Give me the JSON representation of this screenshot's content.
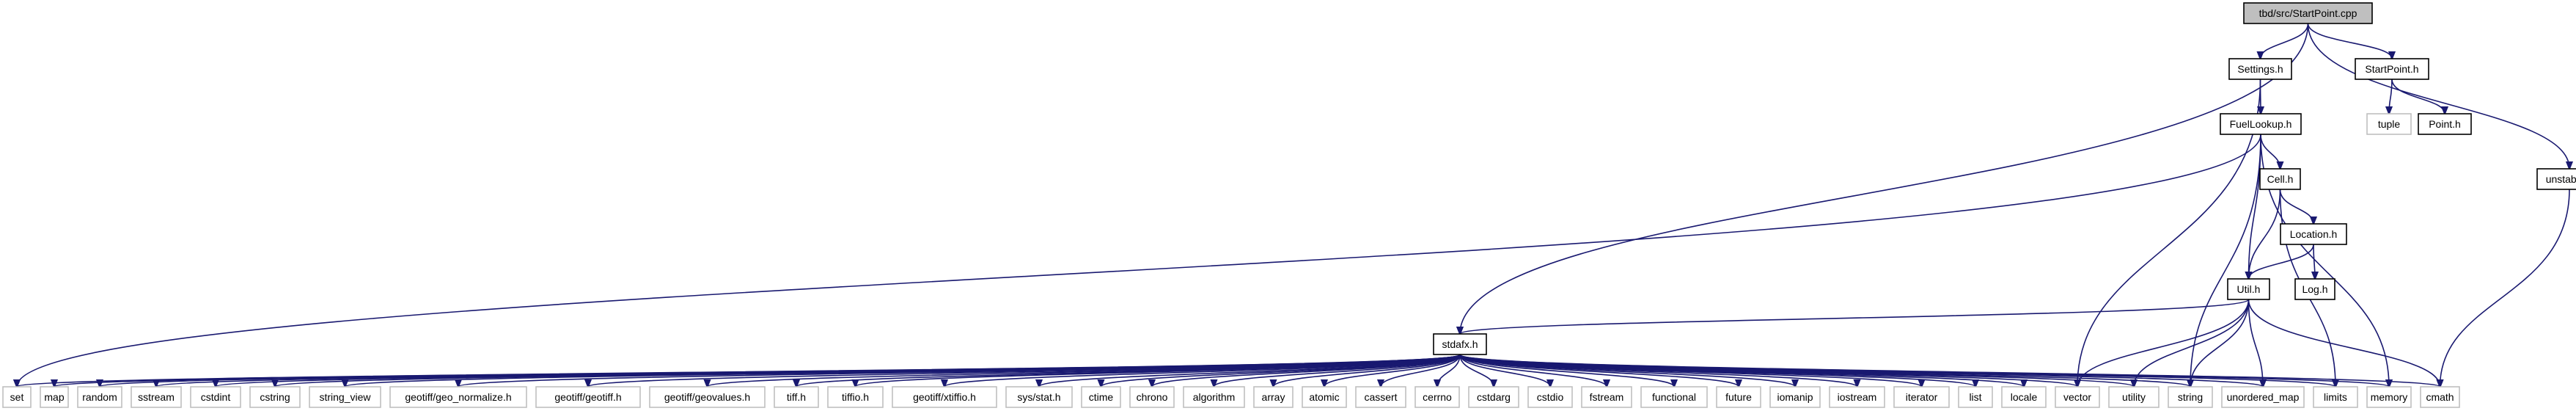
{
  "graph": {
    "root": "tbd/src/StartPoint.cpp",
    "nodes": [
      {
        "id": "root",
        "label": "tbd/src/StartPoint.cpp",
        "kind": "root",
        "doc": true
      },
      {
        "id": "settings",
        "label": "Settings.h",
        "kind": "doc",
        "doc": true
      },
      {
        "id": "startpoint_h",
        "label": "StartPoint.h",
        "kind": "doc",
        "doc": true
      },
      {
        "id": "tuple",
        "label": "tuple",
        "kind": "external",
        "doc": false
      },
      {
        "id": "point_h",
        "label": "Point.h",
        "kind": "doc",
        "doc": true
      },
      {
        "id": "fuellookup",
        "label": "FuelLookup.h",
        "kind": "doc",
        "doc": true
      },
      {
        "id": "unstable",
        "label": "unstable.h",
        "kind": "doc",
        "doc": true
      },
      {
        "id": "cell",
        "label": "Cell.h",
        "kind": "doc",
        "doc": true
      },
      {
        "id": "location",
        "label": "Location.h",
        "kind": "doc",
        "doc": true
      },
      {
        "id": "util",
        "label": "Util.h",
        "kind": "doc",
        "doc": true
      },
      {
        "id": "log",
        "label": "Log.h",
        "kind": "doc",
        "doc": true
      },
      {
        "id": "stdafx",
        "label": "stdafx.h",
        "kind": "doc",
        "doc": true
      },
      {
        "id": "set",
        "label": "set",
        "kind": "external",
        "doc": false
      },
      {
        "id": "map",
        "label": "map",
        "kind": "external",
        "doc": false
      },
      {
        "id": "random",
        "label": "random",
        "kind": "external",
        "doc": false
      },
      {
        "id": "sstream",
        "label": "sstream",
        "kind": "external",
        "doc": false
      },
      {
        "id": "cstdint",
        "label": "cstdint",
        "kind": "external",
        "doc": false
      },
      {
        "id": "cstring",
        "label": "cstring",
        "kind": "external",
        "doc": false
      },
      {
        "id": "string_view",
        "label": "string_view",
        "kind": "external",
        "doc": false
      },
      {
        "id": "geo_normalize",
        "label": "geotiff/geo_normalize.h",
        "kind": "external",
        "doc": false
      },
      {
        "id": "geotiff_h",
        "label": "geotiff/geotiff.h",
        "kind": "external",
        "doc": false
      },
      {
        "id": "geovalues",
        "label": "geotiff/geovalues.h",
        "kind": "external",
        "doc": false
      },
      {
        "id": "tiff_h",
        "label": "tiff.h",
        "kind": "external",
        "doc": false
      },
      {
        "id": "tiffio_h",
        "label": "tiffio.h",
        "kind": "external",
        "doc": false
      },
      {
        "id": "xtiffio",
        "label": "geotiff/xtiffio.h",
        "kind": "external",
        "doc": false
      },
      {
        "id": "sys_stat",
        "label": "sys/stat.h",
        "kind": "external",
        "doc": false
      },
      {
        "id": "ctime",
        "label": "ctime",
        "kind": "external",
        "doc": false
      },
      {
        "id": "chrono",
        "label": "chrono",
        "kind": "external",
        "doc": false
      },
      {
        "id": "algorithm",
        "label": "algorithm",
        "kind": "external",
        "doc": false
      },
      {
        "id": "array",
        "label": "array",
        "kind": "external",
        "doc": false
      },
      {
        "id": "atomic",
        "label": "atomic",
        "kind": "external",
        "doc": false
      },
      {
        "id": "cassert",
        "label": "cassert",
        "kind": "external",
        "doc": false
      },
      {
        "id": "cerrno",
        "label": "cerrno",
        "kind": "external",
        "doc": false
      },
      {
        "id": "cstdarg",
        "label": "cstdarg",
        "kind": "external",
        "doc": false
      },
      {
        "id": "cstdio",
        "label": "cstdio",
        "kind": "external",
        "doc": false
      },
      {
        "id": "fstream",
        "label": "fstream",
        "kind": "external",
        "doc": false
      },
      {
        "id": "functional",
        "label": "functional",
        "kind": "external",
        "doc": false
      },
      {
        "id": "future",
        "label": "future",
        "kind": "external",
        "doc": false
      },
      {
        "id": "iomanip",
        "label": "iomanip",
        "kind": "external",
        "doc": false
      },
      {
        "id": "iostream",
        "label": "iostream",
        "kind": "external",
        "doc": false
      },
      {
        "id": "iterator",
        "label": "iterator",
        "kind": "external",
        "doc": false
      },
      {
        "id": "list",
        "label": "list",
        "kind": "external",
        "doc": false
      },
      {
        "id": "locale",
        "label": "locale",
        "kind": "external",
        "doc": false
      },
      {
        "id": "vector",
        "label": "vector",
        "kind": "external",
        "doc": false
      },
      {
        "id": "utility",
        "label": "utility",
        "kind": "external",
        "doc": false
      },
      {
        "id": "string",
        "label": "string",
        "kind": "external",
        "doc": false
      },
      {
        "id": "unordered_map",
        "label": "unordered_map",
        "kind": "external",
        "doc": false
      },
      {
        "id": "limits",
        "label": "limits",
        "kind": "external",
        "doc": false
      },
      {
        "id": "memory",
        "label": "memory",
        "kind": "external",
        "doc": false
      },
      {
        "id": "cmath",
        "label": "cmath",
        "kind": "external",
        "doc": false
      }
    ],
    "edges": [
      [
        "root",
        "settings"
      ],
      [
        "root",
        "startpoint_h"
      ],
      [
        "root",
        "stdafx"
      ],
      [
        "root",
        "unstable"
      ],
      [
        "startpoint_h",
        "tuple"
      ],
      [
        "startpoint_h",
        "point_h"
      ],
      [
        "settings",
        "fuellookup"
      ],
      [
        "settings",
        "vector"
      ],
      [
        "fuellookup",
        "cell"
      ],
      [
        "fuellookup",
        "util"
      ],
      [
        "fuellookup",
        "set"
      ],
      [
        "fuellookup",
        "memory"
      ],
      [
        "fuellookup",
        "string"
      ],
      [
        "cell",
        "location"
      ],
      [
        "cell",
        "util"
      ],
      [
        "cell",
        "limits"
      ],
      [
        "location",
        "util"
      ],
      [
        "location",
        "log"
      ],
      [
        "util",
        "stdafx"
      ],
      [
        "util",
        "vector"
      ],
      [
        "util",
        "utility"
      ],
      [
        "util",
        "string"
      ],
      [
        "util",
        "unordered_map"
      ],
      [
        "util",
        "cmath"
      ],
      [
        "unstable",
        "cmath"
      ],
      [
        "stdafx",
        "set"
      ],
      [
        "stdafx",
        "map"
      ],
      [
        "stdafx",
        "random"
      ],
      [
        "stdafx",
        "sstream"
      ],
      [
        "stdafx",
        "cstdint"
      ],
      [
        "stdafx",
        "cstring"
      ],
      [
        "stdafx",
        "string_view"
      ],
      [
        "stdafx",
        "geo_normalize"
      ],
      [
        "stdafx",
        "geotiff_h"
      ],
      [
        "stdafx",
        "geovalues"
      ],
      [
        "stdafx",
        "tiff_h"
      ],
      [
        "stdafx",
        "tiffio_h"
      ],
      [
        "stdafx",
        "xtiffio"
      ],
      [
        "stdafx",
        "sys_stat"
      ],
      [
        "stdafx",
        "ctime"
      ],
      [
        "stdafx",
        "chrono"
      ],
      [
        "stdafx",
        "algorithm"
      ],
      [
        "stdafx",
        "array"
      ],
      [
        "stdafx",
        "atomic"
      ],
      [
        "stdafx",
        "cassert"
      ],
      [
        "stdafx",
        "cerrno"
      ],
      [
        "stdafx",
        "cstdarg"
      ],
      [
        "stdafx",
        "cstdio"
      ],
      [
        "stdafx",
        "fstream"
      ],
      [
        "stdafx",
        "functional"
      ],
      [
        "stdafx",
        "future"
      ],
      [
        "stdafx",
        "iomanip"
      ],
      [
        "stdafx",
        "iostream"
      ],
      [
        "stdafx",
        "iterator"
      ],
      [
        "stdafx",
        "list"
      ],
      [
        "stdafx",
        "locale"
      ],
      [
        "stdafx",
        "vector"
      ],
      [
        "stdafx",
        "utility"
      ],
      [
        "stdafx",
        "string"
      ],
      [
        "stdafx",
        "unordered_map"
      ],
      [
        "stdafx",
        "limits"
      ],
      [
        "stdafx",
        "memory"
      ],
      [
        "stdafx",
        "cmath"
      ]
    ],
    "colors": {
      "edge": "#191970",
      "root_fill": "#bfbfbf",
      "doc_border": "#000000",
      "external_border": "#bfbfbf",
      "node_fill": "#ffffff"
    }
  }
}
